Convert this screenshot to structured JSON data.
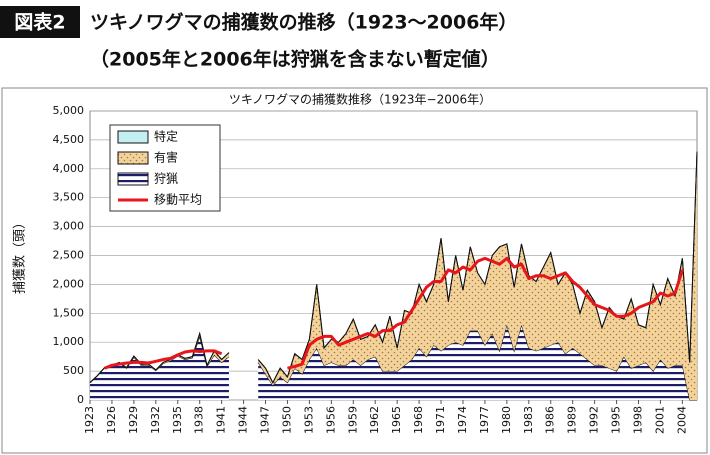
{
  "header": {
    "badge": "図表2",
    "title": "ツキノワグマの捕獲数の推移（1923〜2006年）",
    "subtitle": "（2005年と2006年は狩猟を含まない暫定値）"
  },
  "chart_data": {
    "type": "area",
    "title": "ツキノワグマの捕獲数推移（1923年−2006年）",
    "y_label": "捕獲数（頭）",
    "stacked": true,
    "grid": true,
    "legend": "upper left",
    "x": [
      1923,
      1924,
      1925,
      1926,
      1927,
      1928,
      1929,
      1930,
      1931,
      1932,
      1933,
      1934,
      1935,
      1936,
      1937,
      1938,
      1939,
      1940,
      1941,
      1942,
      1943,
      1944,
      1945,
      1946,
      1947,
      1948,
      1949,
      1950,
      1951,
      1952,
      1953,
      1954,
      1955,
      1956,
      1957,
      1958,
      1959,
      1960,
      1961,
      1962,
      1963,
      1964,
      1965,
      1966,
      1967,
      1968,
      1969,
      1970,
      1971,
      1972,
      1973,
      1974,
      1975,
      1976,
      1977,
      1978,
      1979,
      1980,
      1981,
      1982,
      1983,
      1984,
      1985,
      1986,
      1987,
      1988,
      1989,
      1990,
      1991,
      1992,
      1993,
      1994,
      1995,
      1996,
      1997,
      1998,
      1999,
      2000,
      2001,
      2002,
      2003,
      2004,
      2005,
      2006
    ],
    "xlim": [
      1923,
      2006
    ],
    "xticks": [
      1923,
      1926,
      1929,
      1932,
      1935,
      1938,
      1941,
      1944,
      1947,
      1950,
      1953,
      1956,
      1959,
      1962,
      1965,
      1968,
      1971,
      1974,
      1977,
      1980,
      1983,
      1986,
      1989,
      1992,
      1995,
      1998,
      2001,
      2004
    ],
    "ylim": [
      0,
      5000
    ],
    "yticks": [
      0,
      500,
      {
        "value": 1000,
        "label": "1,000"
      },
      {
        "value": 1500,
        "label": "1,500"
      },
      {
        "value": 2000,
        "label": "2,000"
      },
      {
        "value": 2500,
        "label": "2,500"
      },
      {
        "value": 3000,
        "label": "3,000"
      },
      {
        "value": 3500,
        "label": "3,500"
      },
      {
        "value": 4000,
        "label": "4,000"
      },
      {
        "value": 4500,
        "label": "4,500"
      },
      {
        "value": 5000,
        "label": "5,000"
      }
    ],
    "series": [
      {
        "name": "特定",
        "color": "#c4eef2",
        "values": [
          0,
          0,
          0,
          0,
          0,
          0,
          0,
          0,
          0,
          0,
          0,
          0,
          0,
          0,
          0,
          0,
          0,
          0,
          0,
          0,
          null,
          null,
          null,
          0,
          0,
          0,
          0,
          0,
          0,
          0,
          0,
          0,
          0,
          0,
          0,
          0,
          0,
          0,
          0,
          0,
          0,
          0,
          0,
          0,
          0,
          0,
          0,
          0,
          0,
          0,
          0,
          0,
          0,
          0,
          0,
          0,
          0,
          0,
          0,
          0,
          0,
          0,
          0,
          0,
          0,
          0,
          0,
          0,
          0,
          0,
          0,
          0,
          0,
          0,
          0,
          0,
          0,
          0,
          0,
          0,
          0,
          0,
          0,
          0
        ]
      },
      {
        "name": "有害",
        "color": "#f3d39b",
        "values": [
          0,
          0,
          0,
          10,
          10,
          10,
          20,
          20,
          20,
          10,
          20,
          20,
          20,
          20,
          20,
          50,
          20,
          70,
          50,
          70,
          null,
          null,
          null,
          50,
          100,
          50,
          150,
          100,
          250,
          250,
          350,
          1100,
          300,
          400,
          400,
          550,
          700,
          450,
          400,
          550,
          500,
          950,
          400,
          950,
          800,
          1100,
          950,
          1050,
          1950,
          750,
          1500,
          950,
          1450,
          1000,
          1050,
          1350,
          1800,
          1400,
          1100,
          1400,
          1250,
          1200,
          1400,
          1600,
          1000,
          1400,
          1100,
          700,
          1200,
          1100,
          650,
          1050,
          950,
          650,
          1200,
          700,
          600,
          1500,
          950,
          1550,
          1200,
          1850,
          650,
          4300
        ]
      },
      {
        "name": "狩猟",
        "color": "#1c1c6b",
        "values": [
          300,
          420,
          560,
          590,
          640,
          550,
          740,
          600,
          600,
          510,
          630,
          680,
          760,
          700,
          730,
          1100,
          580,
          780,
          650,
          750,
          null,
          null,
          null,
          650,
          450,
          250,
          400,
          300,
          550,
          450,
          700,
          900,
          600,
          650,
          600,
          600,
          700,
          600,
          700,
          750,
          500,
          500,
          500,
          600,
          700,
          900,
          750,
          950,
          850,
          950,
          1000,
          950,
          1200,
          1200,
          950,
          1150,
          850,
          1300,
          850,
          1300,
          900,
          850,
          900,
          950,
          1000,
          800,
          900,
          800,
          700,
          600,
          600,
          550,
          500,
          750,
          550,
          600,
          650,
          500,
          700,
          550,
          600,
          600,
          0,
          0
        ]
      },
      {
        "name": "移動平均",
        "type": "line",
        "color": "#e8151b",
        "values": [
          null,
          null,
          550,
          600,
          620,
          640,
          650,
          650,
          640,
          670,
          700,
          720,
          780,
          830,
          850,
          840,
          850,
          850,
          800,
          null,
          null,
          null,
          null,
          null,
          null,
          null,
          null,
          550,
          580,
          620,
          950,
          1050,
          1100,
          1100,
          950,
          1000,
          1050,
          1100,
          1150,
          1100,
          1200,
          1200,
          1300,
          1350,
          1550,
          1750,
          1950,
          2050,
          2050,
          2250,
          2200,
          2300,
          2250,
          2400,
          2450,
          2400,
          2350,
          2450,
          2300,
          2350,
          2100,
          2150,
          2150,
          2100,
          2150,
          2200,
          2050,
          1950,
          1800,
          1650,
          1600,
          1550,
          1450,
          1450,
          1500,
          1600,
          1650,
          1700,
          1850,
          1800,
          1850,
          2250,
          null,
          null
        ]
      }
    ]
  }
}
